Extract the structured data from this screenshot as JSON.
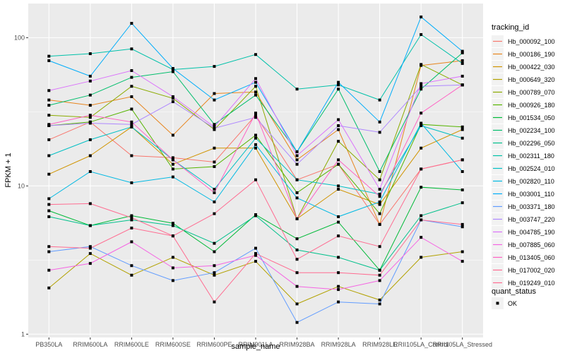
{
  "chart_data": {
    "type": "line",
    "title": "",
    "xlabel": "sample_name",
    "ylabel": "FPKM + 1",
    "yscale": "log10",
    "ylim": [
      0.95,
      170
    ],
    "yticks": [
      1,
      10,
      100
    ],
    "ytick_labels": [
      "1",
      "10",
      "100"
    ],
    "grid": true,
    "categories": [
      "PB350LA",
      "RRIM600LA",
      "RRIM600LE",
      "RRIM600SE",
      "RRIM600PE",
      "RRIM901LA",
      "RRIM928BA",
      "RRIM928LA",
      "RRIM928LE",
      "RRII105LA_Control",
      "RRII105LA_Stressed"
    ],
    "legend": {
      "position": "right",
      "title": "tracking_id",
      "shape_title": "quant_status",
      "shape_entries": [
        "OK"
      ]
    },
    "series": [
      {
        "name": "Hb_000092_100",
        "color": "#F8766D",
        "values": [
          20.5,
          27,
          16,
          15.5,
          14.5,
          30,
          11,
          14,
          5.5,
          13,
          15
        ]
      },
      {
        "name": "Hb_000186_190",
        "color": "#E7851E",
        "values": [
          38,
          35,
          40,
          22,
          42,
          43,
          15,
          24,
          5.5,
          65,
          70
        ]
      },
      {
        "name": "Hb_000422_030",
        "color": "#D09400",
        "values": [
          12,
          16,
          25,
          14,
          18,
          18,
          6,
          9.5,
          7.5,
          18,
          24
        ]
      },
      {
        "name": "Hb_000649_320",
        "color": "#B2A100",
        "values": [
          2.05,
          3.5,
          2.5,
          3.3,
          2.5,
          3.1,
          1.6,
          2.1,
          1.7,
          3.3,
          3.6
        ]
      },
      {
        "name": "Hb_000789_070",
        "color": "#8BAB00",
        "values": [
          30,
          29,
          47,
          39,
          24,
          47,
          6,
          20,
          11,
          66,
          48
        ]
      },
      {
        "name": "Hb_000926_180",
        "color": "#55B400",
        "values": [
          25.5,
          27,
          33,
          13,
          13.5,
          22,
          9,
          14,
          6.5,
          26,
          25
        ]
      },
      {
        "name": "Hb_001534_050",
        "color": "#00BA38",
        "values": [
          6.8,
          5.4,
          6.3,
          5.6,
          3.6,
          6.4,
          4.4,
          5.7,
          2.7,
          9.8,
          9.4
        ]
      },
      {
        "name": "Hb_002234_100",
        "color": "#00BE6C",
        "values": [
          35,
          41,
          54,
          59,
          26,
          41,
          17,
          45,
          12.5,
          45,
          79
        ]
      },
      {
        "name": "Hb_002296_050",
        "color": "#00C08B",
        "values": [
          6.2,
          5.4,
          5.9,
          5.4,
          4.1,
          6.3,
          3.7,
          3.3,
          2.7,
          6.3,
          7.7
        ]
      },
      {
        "name": "Hb_002311_180",
        "color": "#00C1A9",
        "values": [
          75,
          78,
          84,
          61,
          64,
          77,
          45,
          48,
          38,
          105,
          67
        ]
      },
      {
        "name": "Hb_002524_010",
        "color": "#00BFC4",
        "values": [
          16,
          20.5,
          25,
          15,
          9.5,
          21,
          11,
          10,
          8.8,
          25.5,
          21
        ]
      },
      {
        "name": "Hb_002820_110",
        "color": "#00B9E3",
        "values": [
          8.2,
          12.5,
          10.5,
          11.5,
          7.8,
          19,
          8.3,
          6.2,
          7.8,
          26.5,
          12.5
        ]
      },
      {
        "name": "Hb_003001_110",
        "color": "#00ADFA",
        "values": [
          70,
          55,
          125,
          62,
          38,
          50,
          17,
          50,
          27,
          138,
          81
        ]
      },
      {
        "name": "Hb_003371_180",
        "color": "#619CFF",
        "values": [
          3.6,
          3.9,
          2.9,
          2.3,
          2.6,
          3.8,
          1.2,
          1.65,
          1.6,
          5.9,
          5.3
        ]
      },
      {
        "name": "Hb_003747_220",
        "color": "#AE87FF",
        "values": [
          25.5,
          26.5,
          26,
          37,
          24.5,
          29,
          14,
          25.5,
          23,
          47,
          48
        ]
      },
      {
        "name": "Hb_004785_190",
        "color": "#DB72FB",
        "values": [
          44,
          51,
          60,
          40,
          25,
          53,
          16,
          28,
          9.5,
          49,
          55
        ]
      },
      {
        "name": "Hb_007885_060",
        "color": "#F564E3",
        "values": [
          2.7,
          3.0,
          4.2,
          2.8,
          2.9,
          3.4,
          2.1,
          2.0,
          2.3,
          4.5,
          3.1
        ]
      },
      {
        "name": "Hb_013405_060",
        "color": "#FF61C3",
        "values": [
          26,
          30,
          27,
          15,
          9,
          31,
          6,
          15,
          8.5,
          31,
          48
        ]
      },
      {
        "name": "Hb_017002_020",
        "color": "#FF6C91",
        "values": [
          3.9,
          3.8,
          5.2,
          4.6,
          6.5,
          11,
          3.2,
          4.6,
          3.9,
          13,
          15
        ]
      },
      {
        "name": "Hb_019249_010",
        "color": "#FF6C91",
        "values": [
          7.5,
          7.6,
          6.1,
          4.6,
          1.65,
          3.5,
          2.6,
          2.6,
          2.5,
          5.9,
          5.5
        ]
      }
    ]
  }
}
